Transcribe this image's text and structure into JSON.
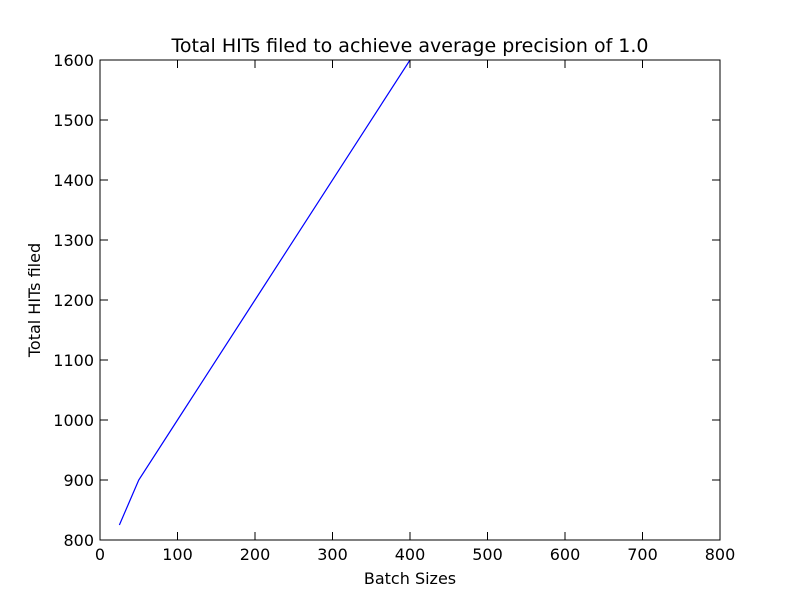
{
  "chart_data": {
    "type": "line",
    "title": "Total HITs filed to achieve average precision of 1.0",
    "xlabel": "Batch Sizes",
    "ylabel": "Total HITs filed",
    "xlim": [
      0,
      800
    ],
    "ylim": [
      800,
      1600
    ],
    "xticks": [
      0,
      100,
      200,
      300,
      400,
      500,
      600,
      700,
      800
    ],
    "yticks": [
      800,
      900,
      1000,
      1100,
      1200,
      1300,
      1400,
      1500,
      1600
    ],
    "grid": false,
    "series": [
      {
        "color": "#0000ff",
        "x": [
          25,
          50,
          100,
          200,
          400
        ],
        "y": [
          825,
          900,
          1000,
          1200,
          1600
        ]
      }
    ]
  }
}
